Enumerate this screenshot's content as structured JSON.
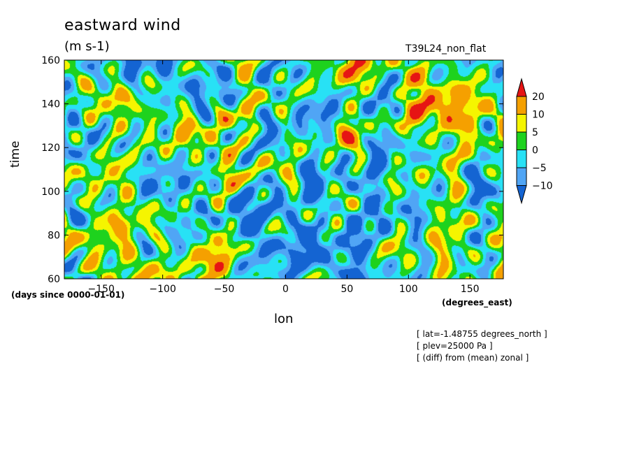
{
  "title": "eastward wind",
  "units": "(m s-1)",
  "experiment": "T39L24_non_flat",
  "notes": [
    "[ lat=-1.48755 degrees_north ]",
    "[ plev=25000 Pa ]",
    "[ (diff) from (mean) zonal ]"
  ],
  "chart_data": {
    "type": "heatmap",
    "xlabel": "lon",
    "ylabel": "time",
    "x_units": "(degrees_east)",
    "y_units": "(days since 0000-01-01)",
    "xlim": [
      -180,
      177.2
    ],
    "ylim": [
      60,
      160
    ],
    "x_ticks": [
      -150,
      -100,
      -50,
      0,
      50,
      100,
      150
    ],
    "y_ticks": [
      60,
      80,
      100,
      120,
      140,
      160
    ],
    "colorbar": {
      "levels": [
        -10,
        -5,
        0,
        5,
        10,
        20
      ],
      "labels": [
        "20",
        "10",
        "5",
        "0",
        "−5",
        "−10"
      ],
      "colors": [
        "#1464d2",
        "#50a5f5",
        "#28e1f5",
        "#1ed21e",
        "#f5f500",
        "#f5a000",
        "#e61414"
      ]
    }
  }
}
